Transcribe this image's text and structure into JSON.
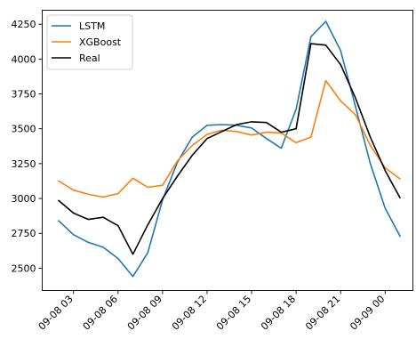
{
  "chart_data": {
    "type": "line",
    "x": [
      "09-08 02",
      "09-08 03",
      "09-08 04",
      "09-08 05",
      "09-08 06",
      "09-08 07",
      "09-08 08",
      "09-08 09",
      "09-08 10",
      "09-08 11",
      "09-08 12",
      "09-08 13",
      "09-08 14",
      "09-08 15",
      "09-08 16",
      "09-08 17",
      "09-08 18",
      "09-08 19",
      "09-08 20",
      "09-08 21",
      "09-08 22",
      "09-08 23",
      "09-09 00",
      "09-09 01"
    ],
    "xtick_labels": [
      "09-08 03",
      "09-08 06",
      "09-08 09",
      "09-08 12",
      "09-08 15",
      "09-08 18",
      "09-08 21",
      "09-09 00"
    ],
    "ylim": [
      2340,
      4350
    ],
    "yticks": [
      2500,
      2750,
      3000,
      3250,
      3500,
      3750,
      4000,
      4250
    ],
    "grid": false,
    "legend_position": "top-left",
    "series": [
      {
        "name": "LSTM",
        "color": "#1f77b4",
        "values": [
          2840,
          2740,
          2685,
          2650,
          2570,
          2440,
          2610,
          2990,
          3260,
          3440,
          3525,
          3530,
          3525,
          3505,
          3430,
          3360,
          3640,
          4160,
          4270,
          4060,
          3660,
          3250,
          2930,
          2730
        ]
      },
      {
        "name": "XGBoost",
        "color": "#ff7f0e",
        "values": [
          3125,
          3060,
          3030,
          3010,
          3035,
          3145,
          3080,
          3095,
          3270,
          3380,
          3460,
          3490,
          3480,
          3455,
          3475,
          3470,
          3400,
          3440,
          3845,
          3700,
          3600,
          3380,
          3220,
          3140
        ]
      },
      {
        "name": "Real",
        "color": "#000000",
        "values": [
          2985,
          2895,
          2850,
          2865,
          2805,
          2600,
          2810,
          3000,
          3160,
          3310,
          3430,
          3480,
          3530,
          3550,
          3545,
          3475,
          3500,
          4110,
          4100,
          3960,
          3720,
          3440,
          3200,
          3005
        ]
      }
    ]
  }
}
